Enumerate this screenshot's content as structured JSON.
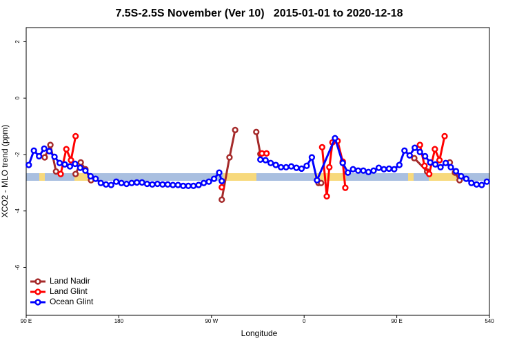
{
  "chart_data": {
    "type": "line",
    "title": "7.5S-2.5S November (Ver 10)   2015-01-01 to 2020-12-18",
    "x_label": "Longitude",
    "y_label": "XCO2 - MLO trend (ppm)",
    "xlim": [
      90,
      540
    ],
    "ylim": [
      -7.7,
      2.5
    ],
    "xticks": [
      {
        "value": 90,
        "label": "90 E"
      },
      180,
      {
        "value": 270,
        "label": "90 W"
      },
      {
        "value": 360,
        "label": "0"
      },
      {
        "value": 450,
        "label": "90 E"
      },
      540
    ],
    "yticks": [
      -6,
      -4,
      -2,
      0,
      2
    ],
    "legend": "bottom-left",
    "series": [
      {
        "name": "Land Nadir",
        "color": "#a52a2a",
        "x": [
          108,
          113.5,
          119,
          null,
          138,
          143,
          147.5,
          153,
          null,
          280,
          287.5,
          293,
          null,
          313.5,
          317.5,
          null,
          374,
          376.5,
          null,
          397.5,
          null,
          467,
          479.5,
          null,
          501.5,
          506.5,
          511
        ],
        "values": [
          -2.1,
          -1.66,
          -2.6,
          null,
          -2.69,
          -2.28,
          -2.52,
          -2.91,
          null,
          -3.6,
          -2.1,
          -1.13,
          null,
          -1.2,
          -1.98,
          null,
          -3.01,
          -3.01,
          null,
          -2.3,
          null,
          -2.13,
          -2.6,
          null,
          -2.28,
          -2.64,
          -2.91
        ]
      },
      {
        "name": "Land Glint",
        "color": "#ff0000",
        "x": [
          123.5,
          129,
          133.5,
          138,
          null,
          280,
          null,
          319,
          323.5,
          null,
          377.5,
          382,
          384.5,
          387.5,
          392.5,
          397.5,
          400,
          null,
          472.5,
          477,
          481.5,
          487,
          491.5,
          496.5
        ],
        "values": [
          -2.69,
          -1.81,
          -2.2,
          -1.35,
          null,
          -3.16,
          null,
          -1.96,
          -1.96,
          null,
          -1.74,
          -3.48,
          -2.45,
          -1.57,
          -1.52,
          -2.25,
          -3.18,
          null,
          -1.66,
          -2.4,
          -2.69,
          -1.81,
          -2.2,
          -1.35
        ]
      },
      {
        "name": "Ocean Glint",
        "color": "#0000ff",
        "x": [
          92.5,
          97.5,
          102.5,
          107.5,
          112.5,
          117.5,
          122.5,
          127.5,
          132.5,
          137.5,
          142.5,
          147.5,
          152.5,
          157.5,
          162.5,
          167.5,
          172.5,
          177.5,
          182.5,
          187.5,
          192.5,
          197.5,
          202.5,
          207.5,
          212.5,
          217.5,
          222.5,
          227.5,
          232.5,
          237.5,
          242.5,
          247.5,
          252.5,
          257.5,
          262.5,
          267.5,
          272.5,
          277.5,
          280,
          null,
          317.5,
          322.5,
          327.5,
          332.5,
          337.5,
          342.5,
          347.5,
          352.5,
          357.5,
          362.5,
          367.5,
          372.5,
          390,
          397.5,
          402.5,
          407.5,
          412.5,
          417.5,
          422.5,
          427.5,
          432.5,
          437.5,
          442.5,
          447.5,
          452.5,
          457.5,
          462.5,
          467.5,
          472.5,
          477.5,
          482.5,
          487.5,
          492.5,
          497.5,
          502.5,
          507.5,
          512.5,
          517.5,
          522.5,
          527.5,
          532.5,
          537.5
        ],
        "values": [
          -2.37,
          -1.86,
          -2.06,
          -1.79,
          -1.88,
          -2.08,
          -2.3,
          -2.35,
          -2.42,
          -2.33,
          -2.47,
          -2.57,
          -2.77,
          -2.86,
          -3.01,
          -3.06,
          -3.08,
          -2.96,
          -3.01,
          -3.04,
          -3.01,
          -2.99,
          -2.99,
          -3.04,
          -3.06,
          -3.04,
          -3.06,
          -3.06,
          -3.08,
          -3.08,
          -3.11,
          -3.11,
          -3.11,
          -3.08,
          -3.01,
          -2.96,
          -2.86,
          -2.64,
          -2.94,
          null,
          -2.18,
          -2.2,
          -2.3,
          -2.37,
          -2.45,
          -2.45,
          -2.42,
          -2.47,
          -2.5,
          -2.4,
          -2.1,
          -2.91,
          -1.42,
          -2.3,
          -2.64,
          -2.52,
          -2.57,
          -2.57,
          -2.62,
          -2.57,
          -2.47,
          -2.52,
          -2.5,
          -2.52,
          -2.37,
          -1.86,
          -2.03,
          -1.76,
          -1.91,
          -2.06,
          -2.28,
          -2.35,
          -2.45,
          -2.3,
          -2.45,
          -2.59,
          -2.77,
          -2.86,
          -3.01,
          -3.06,
          -3.08,
          -2.96
        ]
      }
    ]
  }
}
